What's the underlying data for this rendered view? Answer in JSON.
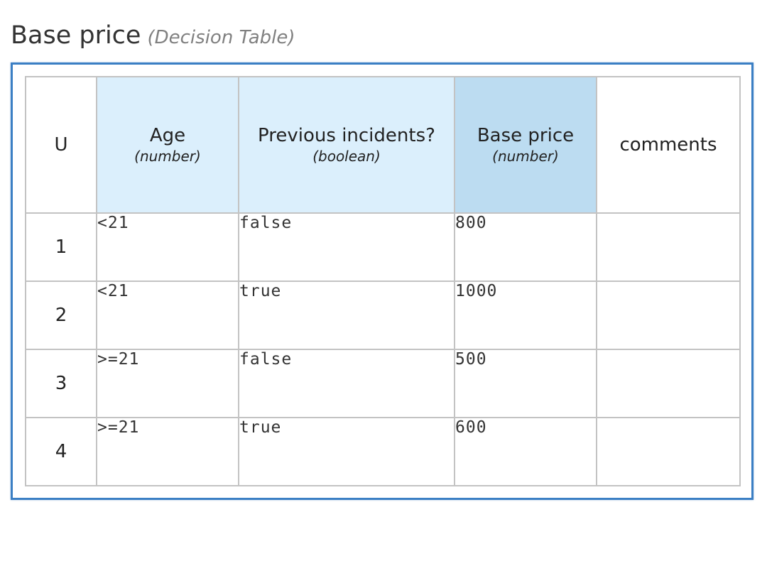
{
  "decision": {
    "name": "Base price",
    "kind": "(Decision Table)"
  },
  "table": {
    "hit_policy": "U",
    "inputs": [
      {
        "label": "Age",
        "type": "(number)"
      },
      {
        "label": "Previous incidents?",
        "type": "(boolean)"
      }
    ],
    "output": {
      "label": "Base price",
      "type": "(number)"
    },
    "annotation": "comments",
    "rules": [
      {
        "number": "1",
        "age": "<21",
        "incidents": "false",
        "price": "800",
        "comment": ""
      },
      {
        "number": "2",
        "age": "<21",
        "incidents": "true",
        "price": "1000",
        "comment": ""
      },
      {
        "number": "3",
        "age": ">=21",
        "incidents": "false",
        "price": "500",
        "comment": ""
      },
      {
        "number": "4",
        "age": ">=21",
        "incidents": "true",
        "price": "600",
        "comment": ""
      }
    ]
  },
  "colors": {
    "frame_border": "#3b7fc4",
    "input_header": "#dbeffc",
    "output_header": "#bcdcf1",
    "grid": "#c3c3c3"
  }
}
